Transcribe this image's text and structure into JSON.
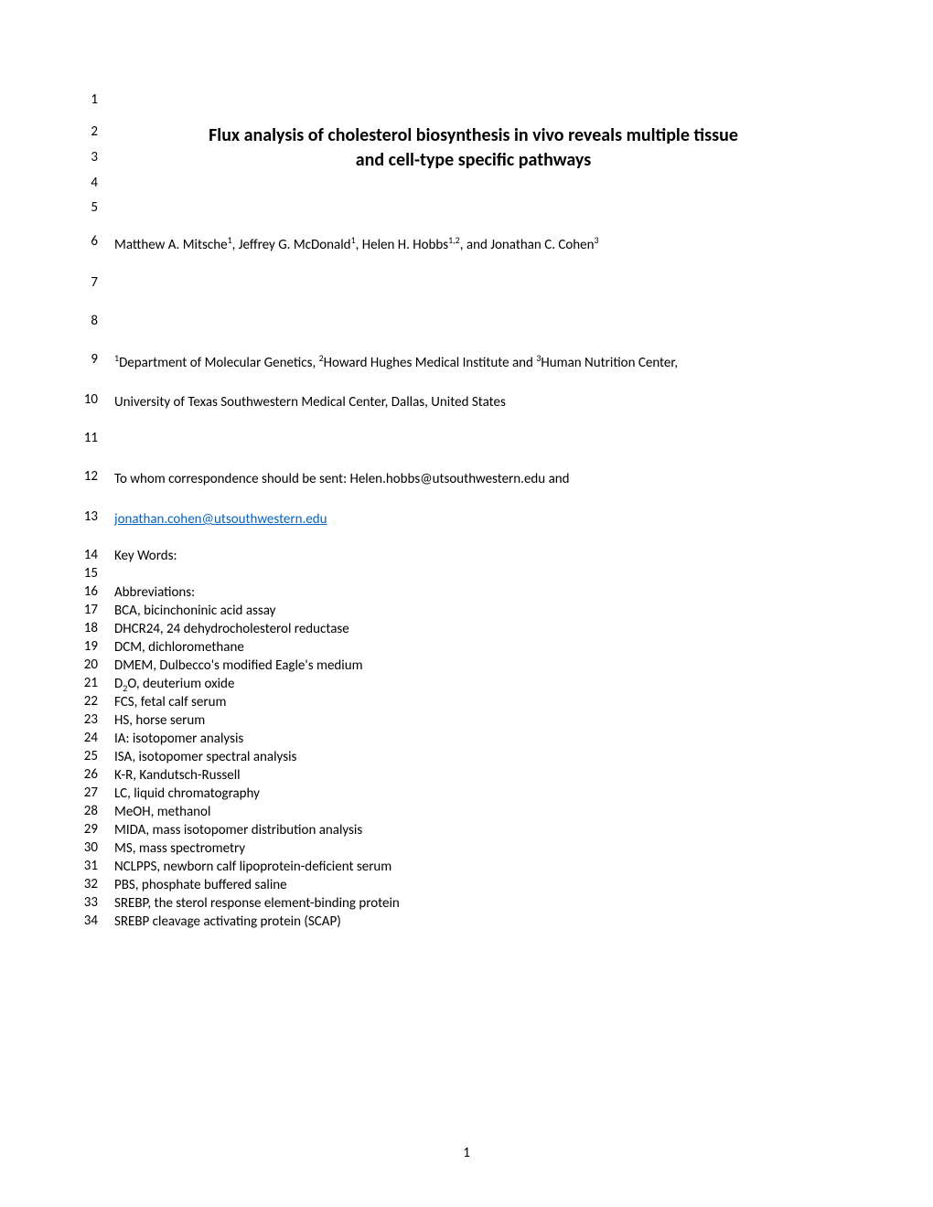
{
  "lineNumbers": [
    "1",
    "2",
    "3",
    "4",
    "5",
    "6",
    "7",
    "8",
    "9",
    "10",
    "11",
    "12",
    "13",
    "14",
    "15",
    "16",
    "17",
    "18",
    "19",
    "20",
    "21",
    "22",
    "23",
    "24",
    "25",
    "26",
    "27",
    "28",
    "29",
    "30",
    "31",
    "32",
    "33",
    "34"
  ],
  "linePositions": [
    100,
    135,
    163,
    191,
    218,
    255,
    300,
    342,
    384,
    428,
    470,
    512,
    556,
    598,
    618,
    638,
    658,
    678,
    698,
    718,
    738,
    758,
    778,
    798,
    818,
    838,
    858,
    878,
    898,
    918,
    938,
    958,
    978,
    998
  ],
  "title": {
    "line1": "Flux analysis of cholesterol biosynthesis in vivo reveals multiple tissue",
    "line2": "and cell-type specific pathways"
  },
  "authors": {
    "prefix": "Matthew A. Mitsche",
    "sup1": "1",
    "mid1": ", Jeffrey G. McDonald",
    "sup2": "1",
    "mid2": ", Helen H. Hobbs",
    "sup3": "1,2",
    "mid3": ", and Jonathan C. Cohen",
    "sup4": "3"
  },
  "affiliations": {
    "sup1": "1",
    "text1": "Department of Molecular Genetics, ",
    "sup2": "2",
    "text2": "Howard Hughes Medical Institute and ",
    "sup3": "3",
    "text3": "Human Nutrition Center,",
    "line2": "University of Texas Southwestern Medical Center, Dallas, United States"
  },
  "correspondence": {
    "text": "To whom correspondence should be sent:  Helen.hobbs@utsouthwestern.edu and",
    "email": "jonathan.cohen@utsouthwestern.edu"
  },
  "keywords": "Key Words:",
  "abbreviationsHeader": "Abbreviations:",
  "abbreviations": [
    "BCA, bicinchoninic acid assay",
    "DHCR24, 24 dehydrocholesterol reductase",
    "DCM, dichloromethane",
    "DMEM, Dulbecco's modified Eagle's medium",
    "FCS, fetal calf serum",
    "HS, horse serum",
    "IA: isotopomer analysis",
    "ISA, isotopomer spectral analysis",
    "K-R, Kandutsch-Russell",
    "LC, liquid chromatography",
    "MeOH, methanol",
    "MIDA, mass isotopomer distribution analysis",
    "MS, mass spectrometry",
    "NCLPPS, newborn calf lipoprotein-deficient serum",
    "PBS, phosphate buffered saline",
    "SREBP, the sterol response element-binding protein",
    "SREBP cleavage activating protein (SCAP)"
  ],
  "d2o": {
    "prefix": "D",
    "sub": "2",
    "suffix": "O, deuterium oxide"
  },
  "pageNumber": "1",
  "colors": {
    "text": "#000000",
    "link": "#0563c1",
    "background": "#ffffff"
  },
  "fonts": {
    "body_size": 15,
    "title_size": 20,
    "sup_size": 10
  }
}
